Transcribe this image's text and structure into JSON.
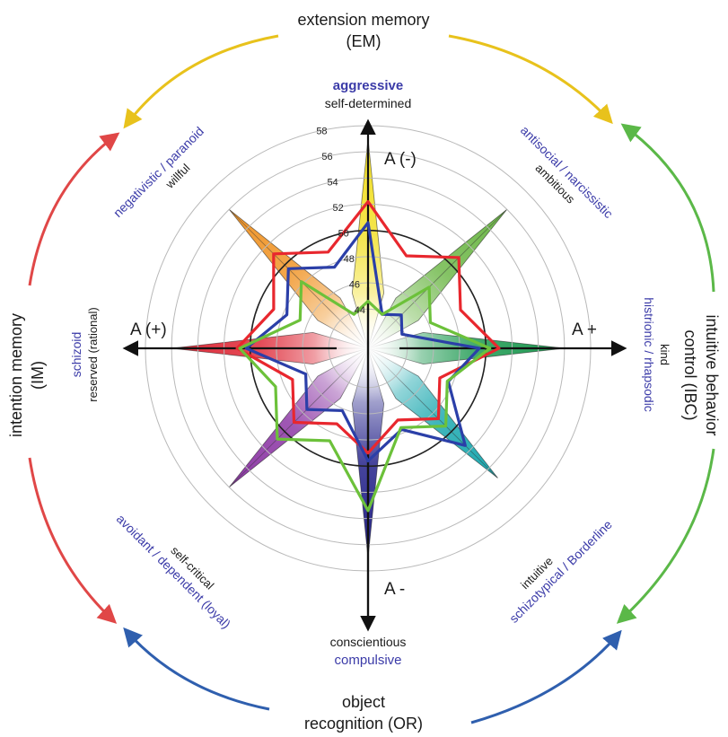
{
  "outer": {
    "top": [
      "extension memory",
      "(EM)"
    ],
    "bottom": [
      "object",
      "recognition (OR)"
    ],
    "left": [
      "intention memory",
      "(IM)"
    ],
    "right": [
      "intuitive behavior",
      "control (IBC)"
    ]
  },
  "axes": {
    "top": "A (-)",
    "bottom": "A -",
    "left": "A (+)",
    "right": "A +"
  },
  "styles": {
    "n": {
      "blue": "aggressive",
      "black": "self-determined"
    },
    "ne": {
      "blue": "antisocial / narcissistic",
      "black": "ambitious"
    },
    "e": {
      "blue": "histrionic / rhapsodic",
      "black": "kind"
    },
    "se": {
      "blue": "schizotypical / Borderline",
      "black": "intuitive"
    },
    "s": {
      "blue": "compulsive",
      "black": "conscientious"
    },
    "sw": {
      "blue": "avoidant / dependent (loyal)",
      "black": "self-critical"
    },
    "w": {
      "blue": "schizoid",
      "black": "reserved (rational)"
    },
    "nw": {
      "blue": "negativistic / paranoid",
      "black": "willful"
    }
  },
  "colors": {
    "em": "#e8c21c",
    "ibc": "#5bb848",
    "or": "#2f5fae",
    "im": "#e04747",
    "red_series": "#e8272e",
    "blue_series": "#2b3fa8",
    "green_series": "#6cc13a"
  },
  "chart_data": {
    "type": "radar",
    "ring_labels": [
      "44",
      "46",
      "48",
      "50",
      "52",
      "54",
      "56",
      "58"
    ],
    "rlim": [
      41,
      58
    ],
    "directions": [
      "N",
      "NE",
      "E",
      "SE",
      "S",
      "SW",
      "W",
      "NW"
    ],
    "star_spikes": [
      57,
      56,
      56,
      55,
      57,
      56,
      56,
      56
    ],
    "series": [
      {
        "color": "red",
        "values": [
          52.2,
          50.8,
          51.0,
          48.6,
          49.0,
          49.0,
          51.0,
          51.2
        ]
      },
      {
        "color": "blue",
        "values": [
          50.6,
          44.6,
          49.5,
          51.5,
          49.6,
          47.6,
          50.3,
          49.6
        ]
      },
      {
        "color": "green",
        "values": [
          44.6,
          47.6,
          50.3,
          49.4,
          53.4,
          50.8,
          50.8,
          48.2
        ]
      }
    ]
  }
}
